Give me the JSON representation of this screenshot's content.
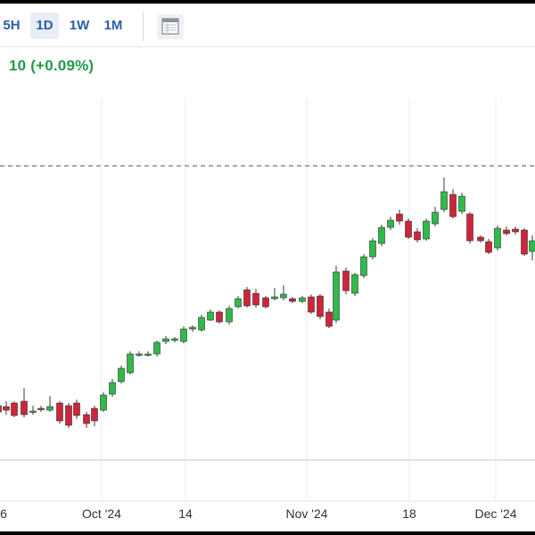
{
  "toolbar": {
    "timeframes": [
      {
        "label": "5H",
        "active": false
      },
      {
        "label": "1D",
        "active": true
      },
      {
        "label": "1W",
        "active": false
      },
      {
        "label": "1M",
        "active": false
      }
    ],
    "chart_type_icon": "calendar-table-icon"
  },
  "price_change": {
    "text": "10 (+0.09%)",
    "color": "#1f9a4a"
  },
  "chart_data": {
    "type": "candlestick",
    "x_labels": [
      "6",
      "Oct '24",
      "14",
      "Nov '24",
      "18",
      "Dec '24"
    ],
    "colors": {
      "up": "#2fba4a",
      "down": "#d0243a",
      "reference_line": "#555555"
    },
    "reference_line": "dashed",
    "grid": true
  },
  "candles": [
    [
      -2,
      455,
      462,
      448,
      468
    ],
    [
      7,
      456,
      460,
      450,
      465
    ],
    [
      16,
      452,
      466,
      450,
      468
    ],
    [
      27,
      450,
      465,
      435,
      468
    ],
    [
      37,
      461,
      461,
      455,
      465
    ],
    [
      46,
      458,
      459,
      455,
      462
    ],
    [
      56,
      460,
      456,
      444,
      462
    ],
    [
      67,
      452,
      472,
      450,
      475
    ],
    [
      77,
      455,
      477,
      452,
      480
    ],
    [
      86,
      452,
      466,
      448,
      470
    ],
    [
      97,
      465,
      475,
      462,
      480
    ],
    [
      106,
      458,
      472,
      455,
      478
    ],
    [
      116,
      460,
      443,
      440,
      462
    ],
    [
      126,
      442,
      429,
      425,
      445
    ],
    [
      136,
      428,
      413,
      410,
      430
    ],
    [
      146,
      418,
      397,
      394,
      420
    ],
    [
      156,
      398,
      397,
      394,
      400
    ],
    [
      166,
      398,
      397,
      394,
      400
    ],
    [
      176,
      397,
      384,
      382,
      400
    ],
    [
      186,
      383,
      380,
      377,
      386
    ],
    [
      196,
      381,
      380,
      378,
      384
    ],
    [
      206,
      383,
      369,
      366,
      385
    ],
    [
      216,
      369,
      367,
      365,
      372
    ],
    [
      226,
      370,
      356,
      353,
      372
    ],
    [
      236,
      359,
      350,
      347,
      360
    ],
    [
      246,
      350,
      361,
      348,
      363
    ],
    [
      257,
      361,
      346,
      343,
      364
    ],
    [
      267,
      344,
      335,
      332,
      346
    ],
    [
      277,
      325,
      343,
      322,
      345
    ],
    [
      287,
      329,
      342,
      324,
      345
    ],
    [
      298,
      334,
      344,
      332,
      346
    ],
    [
      308,
      335,
      333,
      323,
      337
    ],
    [
      318,
      334,
      330,
      320,
      337
    ],
    [
      328,
      335,
      338,
      333,
      340
    ],
    [
      339,
      338,
      334,
      332,
      340
    ],
    [
      349,
      333,
      350,
      330,
      352
    ],
    [
      359,
      332,
      355,
      330,
      358
    ],
    [
      369,
      350,
      366,
      346,
      368
    ],
    [
      377,
      359,
      305,
      298,
      362
    ],
    [
      388,
      304,
      326,
      300,
      330
    ],
    [
      398,
      329,
      308,
      306,
      332
    ],
    [
      408,
      309,
      288,
      285,
      312
    ],
    [
      418,
      288,
      270,
      267,
      291
    ],
    [
      428,
      273,
      255,
      252,
      276
    ],
    [
      438,
      255,
      247,
      243,
      258
    ],
    [
      448,
      240,
      248,
      235,
      252
    ],
    [
      458,
      248,
      266,
      245,
      268
    ],
    [
      468,
      260,
      269,
      256,
      272
    ],
    [
      478,
      268,
      248,
      245,
      270
    ],
    [
      488,
      251,
      238,
      232,
      254
    ],
    [
      498,
      235,
      215,
      199,
      238
    ],
    [
      508,
      218,
      243,
      212,
      245
    ],
    [
      518,
      237,
      220,
      216,
      240
    ],
    [
      527,
      240,
      270,
      238,
      273
    ],
    [
      539,
      266,
      270,
      264,
      272
    ],
    [
      548,
      271,
      283,
      268,
      285
    ],
    [
      558,
      278,
      256,
      253,
      281
    ],
    [
      568,
      258,
      262,
      254,
      264
    ],
    [
      578,
      257,
      260,
      254,
      263
    ],
    [
      588,
      258,
      285,
      256,
      287
    ],
    [
      597,
      282,
      270,
      264,
      292
    ]
  ]
}
